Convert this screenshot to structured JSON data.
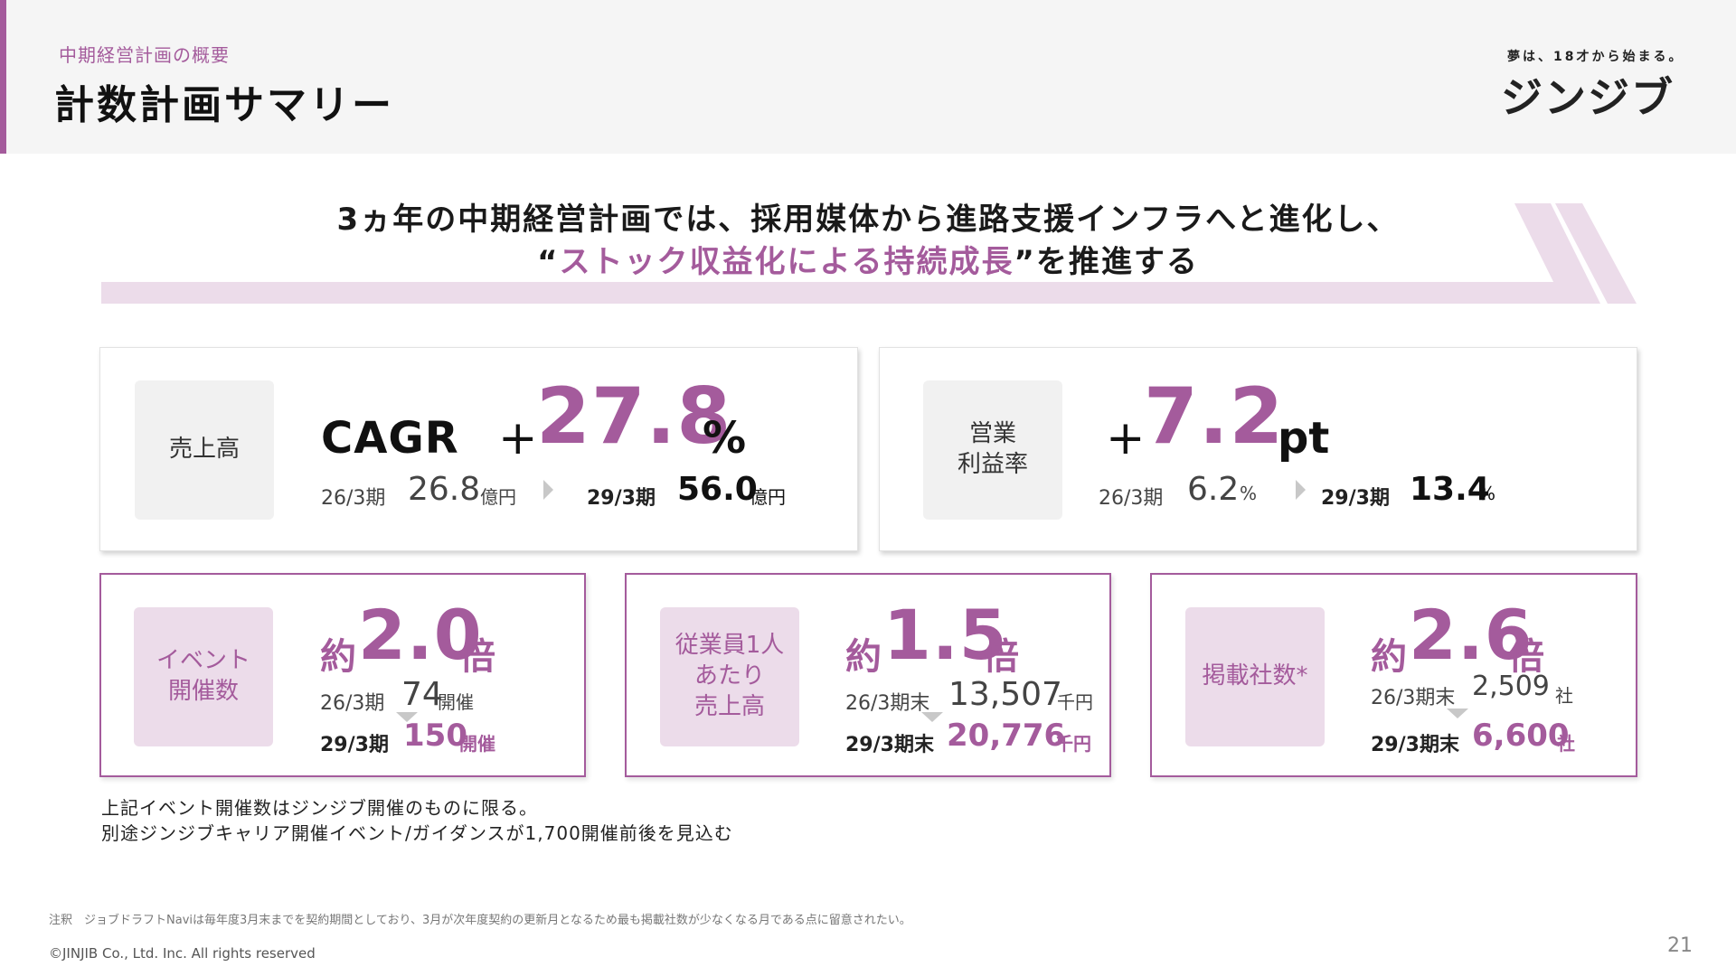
{
  "header": {
    "breadcrumb": "中期経営計画の概要",
    "title": "計数計画サマリー",
    "tagline": "夢は、18才から始まる。",
    "logo": "ジンジブ"
  },
  "headline": {
    "line1": "3ヵ年の中期経営計画では、採用媒体から進路支援インフラへと進化し、",
    "open_quote": "“",
    "accent": "ストック収益化による持続成長",
    "close": "”を推進する"
  },
  "sales": {
    "label": "売上高",
    "metric": "CAGR",
    "sign": "+",
    "value": "27.8",
    "unit": "%",
    "from_period": "26/3期",
    "from_value": "26.8",
    "from_unit": "億円",
    "to_period": "29/3期",
    "to_value": "56.0",
    "to_unit": "億円"
  },
  "margin": {
    "label_line1": "営業",
    "label_line2": "利益率",
    "sign": "+",
    "value": "7.2",
    "unit": "pt",
    "from_period": "26/3期",
    "from_value": "6.2",
    "from_unit": "%",
    "to_period": "29/3期",
    "to_value": "13.4",
    "to_unit": "%"
  },
  "events": {
    "label_line1": "イベント",
    "label_line2": "開催数",
    "prefix": "約",
    "value": "2.0",
    "suffix": "倍",
    "from_period": "26/3期",
    "from_value": "74",
    "from_unit": "開催",
    "to_period": "29/3期",
    "to_value": "150",
    "to_unit": "開催"
  },
  "per_employee": {
    "label_line1": "従業員1人",
    "label_line2": "あたり",
    "label_line3": "売上高",
    "prefix": "約",
    "value": "1.5",
    "suffix": "倍",
    "from_period": "26/3期末",
    "from_value": "13,507",
    "from_unit": "千円",
    "to_period": "29/3期末",
    "to_value": "20,776",
    "to_unit": "千円"
  },
  "companies": {
    "label": "掲載社数*",
    "prefix": "約",
    "value": "2.6",
    "suffix": "倍",
    "from_period": "26/3期末",
    "from_value": "2,509",
    "from_unit": "社",
    "to_period": "29/3期末",
    "to_value": "6,600",
    "to_unit": "社"
  },
  "notes": {
    "line1": "上記イベント開催数はジンジブ開催のものに限る。",
    "line2": "別途ジンジブキャリア開催イベント/ガイダンスが1,700開催前後を見込む"
  },
  "footnote": "注釈　ジョブドラフトNaviは毎年度3月末までを契約期間としており、3月が次年度契約の更新月となるため最も掲載社数が少なくなる月である点に留意されたい。",
  "copyright": "©JINJIB Co., Ltd. Inc. All rights reserved",
  "page_number": "21",
  "colors": {
    "accent": "#a45b9c",
    "accent_light": "#ecdcea",
    "header_bg": "#f5f5f5"
  }
}
